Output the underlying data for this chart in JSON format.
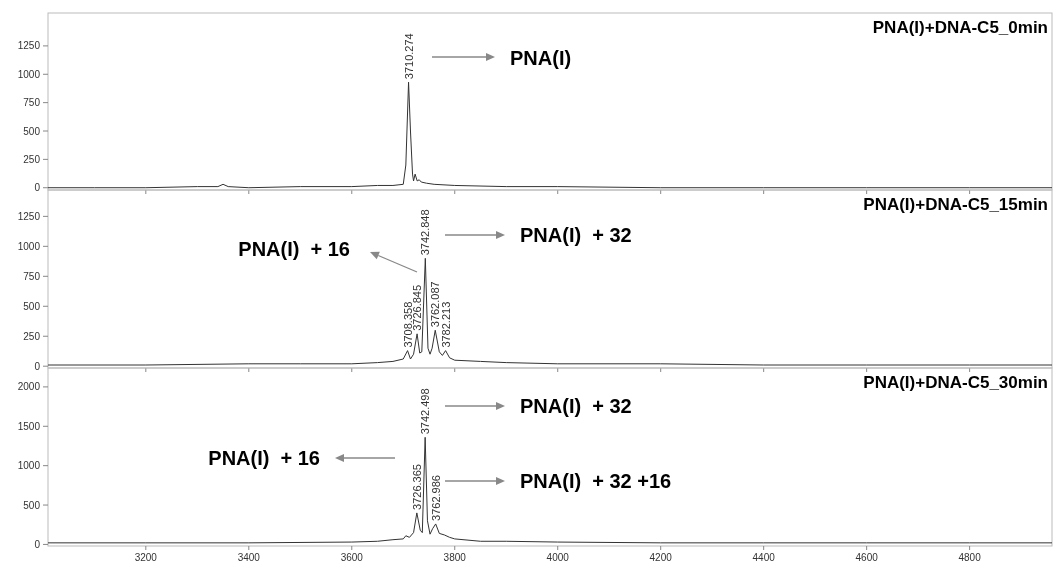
{
  "chart_data": [
    {
      "type": "line",
      "title": "PNA(I)+DNA-C5_0min",
      "xlim": [
        3010,
        4960
      ],
      "ylim": [
        -20,
        1540
      ],
      "xticks": [
        3200,
        3400,
        3600,
        3800,
        4000,
        4200,
        4400,
        4600,
        4800
      ],
      "yticks": [
        0,
        250,
        500,
        750,
        1000,
        1250
      ],
      "tick_labels": "y",
      "grid": false,
      "series": [
        {
          "color": "#333333",
          "x": [
            3010,
            3100,
            3200,
            3300,
            3340,
            3350,
            3360,
            3400,
            3500,
            3600,
            3650,
            3680,
            3700,
            3705,
            3710.274,
            3714,
            3718,
            3720,
            3723,
            3727,
            3731,
            3735,
            3745,
            3760,
            3800,
            3900,
            4000,
            4200,
            4400,
            4600,
            4800,
            4960
          ],
          "values": [
            0,
            0,
            0,
            10,
            10,
            30,
            10,
            0,
            10,
            10,
            20,
            20,
            30,
            200,
            930,
            500,
            120,
            60,
            120,
            60,
            70,
            50,
            40,
            30,
            20,
            10,
            10,
            0,
            0,
            0,
            0,
            0
          ]
        }
      ],
      "annotations": [
        {
          "text": "3710.274",
          "x": 3710.274,
          "y": 930
        },
        "PNA(I)"
      ]
    },
    {
      "type": "line",
      "title": "PNA(I)+DNA-C5_15min",
      "xlim": [
        3010,
        4960
      ],
      "ylim": [
        -15,
        1470
      ],
      "xticks": [
        3200,
        3400,
        3600,
        3800,
        4000,
        4200,
        4400,
        4600,
        4800
      ],
      "yticks": [
        0,
        250,
        500,
        750,
        1000,
        1250
      ],
      "tick_labels": "y",
      "grid": false,
      "series": [
        {
          "color": "#333333",
          "x": [
            3010,
            3200,
            3400,
            3500,
            3600,
            3650,
            3680,
            3700,
            3708.358,
            3714,
            3720,
            3726.845,
            3732,
            3736,
            3742.848,
            3748,
            3752,
            3756,
            3762.087,
            3770,
            3776,
            3782.213,
            3790,
            3800,
            3850,
            3900,
            4000,
            4200,
            4400,
            4600,
            4800,
            4960
          ],
          "values": [
            10,
            10,
            20,
            20,
            20,
            30,
            40,
            60,
            130,
            60,
            100,
            270,
            110,
            120,
            900,
            150,
            100,
            150,
            300,
            120,
            90,
            130,
            70,
            50,
            40,
            30,
            20,
            20,
            10,
            10,
            10,
            10
          ]
        }
      ],
      "annotations": [
        {
          "text": "3742.848",
          "x": 3742.848,
          "y": 900
        },
        {
          "text": "3708.358",
          "x": 3708.358,
          "y": 130
        },
        {
          "text": "3726.845",
          "x": 3726.845,
          "y": 270
        },
        {
          "text": "3762.087",
          "x": 3762.087,
          "y": 300
        },
        {
          "text": "3782.213",
          "x": 3782.213,
          "y": 130
        },
        "PNA(I)  + 32",
        "PNA(I)  + 16"
      ]
    },
    {
      "type": "line",
      "title": "PNA(I)+DNA-C5_30min",
      "xlim": [
        3010,
        4960
      ],
      "ylim": [
        -20,
        2240
      ],
      "xticks": [
        3200,
        3400,
        3600,
        3800,
        4000,
        4200,
        4400,
        4600,
        4800
      ],
      "yticks": [
        0,
        500,
        1000,
        1500,
        2000
      ],
      "grid": false,
      "series": [
        {
          "color": "#333333",
          "x": [
            3010,
            3200,
            3400,
            3600,
            3650,
            3680,
            3700,
            3705,
            3712,
            3720,
            3726.365,
            3733,
            3737,
            3742.498,
            3747,
            3752,
            3757,
            3762.986,
            3770,
            3780,
            3790,
            3800,
            3850,
            3900,
            4000,
            4200,
            4400,
            4600,
            4800,
            4960
          ],
          "values": [
            20,
            20,
            20,
            30,
            40,
            60,
            70,
            110,
            90,
            150,
            400,
            180,
            150,
            1360,
            300,
            130,
            200,
            260,
            140,
            120,
            90,
            70,
            40,
            40,
            30,
            20,
            20,
            20,
            20,
            20
          ]
        }
      ],
      "annotations": [
        {
          "text": "3742.498",
          "x": 3742.498,
          "y": 1360
        },
        {
          "text": "3726.365",
          "x": 3726.365,
          "y": 400
        },
        {
          "text": "3762.986",
          "x": 3762.986,
          "y": 260
        },
        "PNA(I)  + 32",
        "PNA(I)  + 16",
        "PNA(I)  + 32 +16"
      ]
    }
  ]
}
